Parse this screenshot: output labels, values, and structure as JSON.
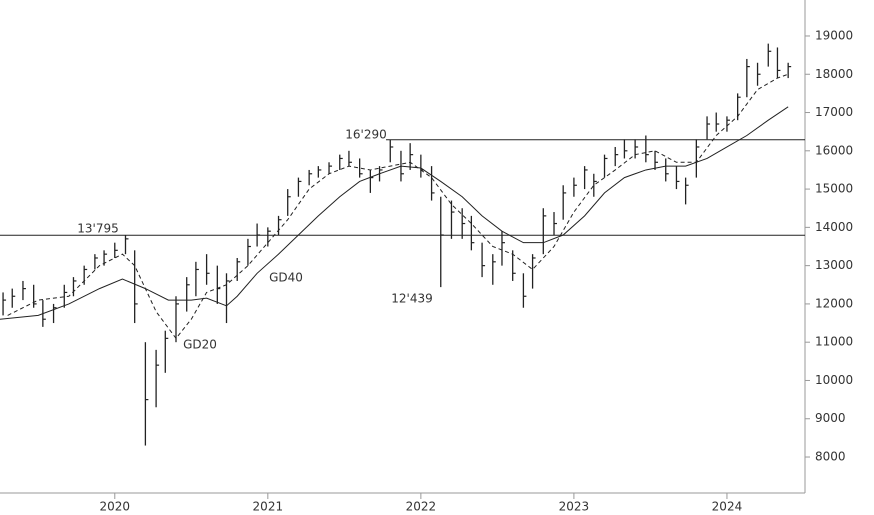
{
  "chart_data": {
    "type": "ohlc",
    "bars": {
      "x": [
        2019.27,
        2019.33,
        2019.4,
        2019.47,
        2019.53,
        2019.6,
        2019.67,
        2019.73,
        2019.8,
        2019.87,
        2019.93,
        2020.0,
        2020.07,
        2020.13,
        2020.2,
        2020.27,
        2020.33,
        2020.4,
        2020.47,
        2020.53,
        2020.6,
        2020.67,
        2020.73,
        2020.8,
        2020.87,
        2020.93,
        2021.0,
        2021.07,
        2021.13,
        2021.2,
        2021.27,
        2021.33,
        2021.4,
        2021.47,
        2021.53,
        2021.6,
        2021.67,
        2021.73,
        2021.8,
        2021.87,
        2021.93,
        2022.0,
        2022.07,
        2022.13,
        2022.2,
        2022.27,
        2022.33,
        2022.4,
        2022.47,
        2022.53,
        2022.6,
        2022.67,
        2022.73,
        2022.8,
        2022.87,
        2022.93,
        2023.0,
        2023.07,
        2023.13,
        2023.2,
        2023.27,
        2023.33,
        2023.4,
        2023.47,
        2023.53,
        2023.6,
        2023.67,
        2023.73,
        2023.8,
        2023.87,
        2023.93,
        2024.0,
        2024.07,
        2024.13,
        2024.2,
        2024.27,
        2024.33,
        2024.4
      ],
      "high": [
        12300,
        12400,
        12600,
        12500,
        12100,
        12000,
        12500,
        12700,
        13000,
        13300,
        13400,
        13600,
        13795,
        13400,
        11000,
        10800,
        11300,
        12200,
        12700,
        13100,
        13300,
        13000,
        12800,
        13200,
        13700,
        14100,
        14000,
        14300,
        15000,
        15300,
        15500,
        15600,
        15700,
        15900,
        16000,
        15800,
        15500,
        15600,
        16290,
        16000,
        16200,
        15900,
        15600,
        14800,
        14700,
        14500,
        14300,
        13600,
        13300,
        13900,
        13400,
        12800,
        13300,
        14500,
        14400,
        15100,
        15300,
        15600,
        15400,
        15900,
        16100,
        16300,
        16300,
        16400,
        16000,
        15800,
        15600,
        15300,
        16300,
        16900,
        17000,
        16900,
        17500,
        18400,
        18300,
        18800,
        18700,
        18300
      ],
      "low": [
        11700,
        11900,
        12100,
        11900,
        11400,
        11500,
        11900,
        12200,
        12500,
        12900,
        13000,
        13200,
        13300,
        11500,
        8300,
        9300,
        10200,
        11000,
        11800,
        12200,
        12500,
        12000,
        11500,
        12600,
        13000,
        13500,
        13500,
        13800,
        14300,
        14800,
        15100,
        15300,
        15400,
        15500,
        15600,
        15300,
        14900,
        15200,
        15700,
        15200,
        15500,
        15300,
        14700,
        12439,
        13700,
        13700,
        13400,
        12700,
        12500,
        13000,
        12600,
        11900,
        12400,
        13300,
        13800,
        14200,
        14800,
        15000,
        14800,
        15300,
        15600,
        15800,
        15800,
        15700,
        15500,
        15200,
        15000,
        14600,
        15300,
        16300,
        16500,
        16500,
        16800,
        17400,
        17700,
        18200,
        17900,
        17900
      ],
      "close": [
        12100,
        12200,
        12400,
        12000,
        11600,
        11900,
        12300,
        12600,
        12900,
        13200,
        13300,
        13400,
        13700,
        12000,
        9500,
        10400,
        11100,
        12000,
        12500,
        12900,
        12800,
        12400,
        12600,
        13100,
        13500,
        13800,
        13900,
        14200,
        14800,
        15200,
        15400,
        15500,
        15600,
        15800,
        15700,
        15400,
        15300,
        15500,
        16100,
        15400,
        15900,
        15500,
        14900,
        13800,
        14400,
        14100,
        13600,
        13000,
        13100,
        13600,
        12800,
        12200,
        13200,
        14300,
        14100,
        14900,
        15100,
        15500,
        15200,
        15800,
        15900,
        16000,
        16100,
        15900,
        15700,
        15400,
        15200,
        15100,
        16100,
        16700,
        16700,
        16800,
        17400,
        18200,
        18000,
        18600,
        18100,
        18200
      ]
    },
    "series": [
      {
        "name": "GD20",
        "color": "#222222",
        "dash": true,
        "x": [
          2019.3,
          2019.5,
          2019.7,
          2019.9,
          2020.05,
          2020.13,
          2020.27,
          2020.4,
          2020.5,
          2020.6,
          2020.73,
          2020.87,
          2021.0,
          2021.13,
          2021.27,
          2021.4,
          2021.53,
          2021.67,
          2021.8,
          2021.93,
          2022.07,
          2022.2,
          2022.33,
          2022.47,
          2022.6,
          2022.73,
          2022.87,
          2023.0,
          2023.13,
          2023.27,
          2023.4,
          2023.53,
          2023.67,
          2023.8,
          2023.93,
          2024.07,
          2024.2,
          2024.33,
          2024.4
        ],
        "values": [
          11700,
          12100,
          12200,
          13000,
          13300,
          13000,
          11800,
          11100,
          11600,
          12300,
          12500,
          13000,
          13600,
          14200,
          15000,
          15400,
          15600,
          15500,
          15600,
          15700,
          15300,
          14600,
          14100,
          13500,
          13300,
          12900,
          13500,
          14400,
          15100,
          15500,
          15900,
          16000,
          15700,
          15700,
          16400,
          16900,
          17600,
          17900,
          18000
        ]
      },
      {
        "name": "GD40",
        "color": "#222222",
        "dash": false,
        "x": [
          2019.25,
          2019.5,
          2019.7,
          2019.9,
          2020.05,
          2020.2,
          2020.35,
          2020.5,
          2020.6,
          2020.73,
          2020.8,
          2020.93,
          2021.07,
          2021.2,
          2021.33,
          2021.47,
          2021.6,
          2021.73,
          2021.87,
          2022.0,
          2022.13,
          2022.27,
          2022.4,
          2022.53,
          2022.67,
          2022.8,
          2022.93,
          2023.07,
          2023.2,
          2023.33,
          2023.47,
          2023.6,
          2023.73,
          2023.87,
          2024.0,
          2024.13,
          2024.27,
          2024.4
        ],
        "values": [
          11600,
          11700,
          12000,
          12400,
          12650,
          12400,
          12100,
          12100,
          12150,
          11950,
          12200,
          12800,
          13300,
          13800,
          14300,
          14800,
          15200,
          15400,
          15600,
          15550,
          15200,
          14800,
          14300,
          13900,
          13600,
          13600,
          13800,
          14300,
          14900,
          15300,
          15500,
          15600,
          15600,
          15800,
          16100,
          16400,
          16800,
          17150
        ]
      }
    ],
    "levels": [
      {
        "value": 13795,
        "label": "13'795"
      },
      {
        "value": 16290,
        "label": "16'290"
      }
    ],
    "low_mark": {
      "value": 12439,
      "label": "12'439"
    },
    "xlim": [
      2019.25,
      2024.51
    ],
    "xticks": [
      2020,
      2021,
      2022,
      2023,
      2024
    ],
    "ylim": [
      7060,
      19940
    ],
    "yticks": [
      8000,
      9000,
      10000,
      11000,
      12000,
      13000,
      14000,
      15000,
      16000,
      17000,
      18000,
      19000
    ],
    "grid": false
  }
}
